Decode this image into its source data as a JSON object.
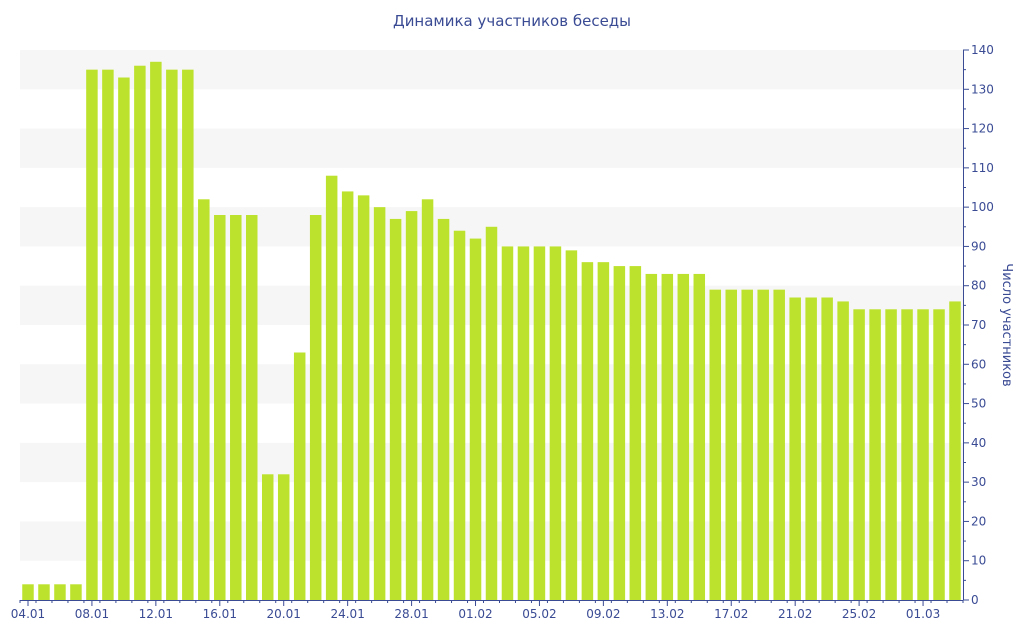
{
  "chart_data": {
    "type": "bar",
    "title": "Динамика участников беседы",
    "ylabel": "Число участников",
    "xlabel": "",
    "ylim": [
      0,
      140
    ],
    "y_ticks": [
      0,
      10,
      20,
      30,
      40,
      50,
      60,
      70,
      80,
      90,
      100,
      110,
      120,
      130,
      140
    ],
    "x_tick_labels": [
      {
        "index": 0,
        "label": "04.01"
      },
      {
        "index": 4,
        "label": "08.01"
      },
      {
        "index": 8,
        "label": "12.01"
      },
      {
        "index": 12,
        "label": "16.01"
      },
      {
        "index": 16,
        "label": "20.01"
      },
      {
        "index": 20,
        "label": "24.01"
      },
      {
        "index": 24,
        "label": "28.01"
      },
      {
        "index": 28,
        "label": "01.02"
      },
      {
        "index": 32,
        "label": "05.02"
      },
      {
        "index": 36,
        "label": "09.02"
      },
      {
        "index": 40,
        "label": "13.02"
      },
      {
        "index": 44,
        "label": "17.02"
      },
      {
        "index": 48,
        "label": "21.02"
      },
      {
        "index": 52,
        "label": "25.02"
      },
      {
        "index": 56,
        "label": "01.03"
      }
    ],
    "categories": [
      "04.01",
      "05.01",
      "06.01",
      "07.01",
      "08.01",
      "09.01",
      "10.01",
      "11.01",
      "12.01",
      "13.01",
      "14.01",
      "15.01",
      "16.01",
      "17.01",
      "18.01",
      "19.01",
      "20.01",
      "21.01",
      "22.01",
      "23.01",
      "24.01",
      "25.01",
      "26.01",
      "27.01",
      "28.01",
      "29.01",
      "30.01",
      "31.01",
      "01.02",
      "02.02",
      "03.02",
      "04.02",
      "05.02",
      "06.02",
      "07.02",
      "08.02",
      "09.02",
      "10.02",
      "11.02",
      "12.02",
      "13.02",
      "14.02",
      "15.02",
      "16.02",
      "17.02",
      "18.02",
      "19.02",
      "20.02",
      "21.02",
      "22.02",
      "23.02",
      "24.02",
      "25.02",
      "26.02",
      "27.02",
      "28.02",
      "01.03",
      "02.03",
      "03.03"
    ],
    "values": [
      4,
      4,
      4,
      4,
      135,
      135,
      133,
      136,
      137,
      135,
      135,
      102,
      98,
      98,
      98,
      32,
      32,
      63,
      98,
      108,
      104,
      103,
      100,
      97,
      99,
      102,
      97,
      94,
      92,
      95,
      90,
      90,
      90,
      90,
      89,
      86,
      86,
      85,
      85,
      83,
      83,
      83,
      83,
      79,
      79,
      79,
      79,
      79,
      77,
      77,
      77,
      76,
      74,
      74,
      74,
      74,
      74,
      74,
      76
    ],
    "colors": {
      "bar": "#bde22e",
      "band": "#f6f6f6",
      "text": "#3a4b94",
      "axis": "#3a4b94"
    },
    "grid": "horizontal bands",
    "y_axis_side": "right"
  }
}
